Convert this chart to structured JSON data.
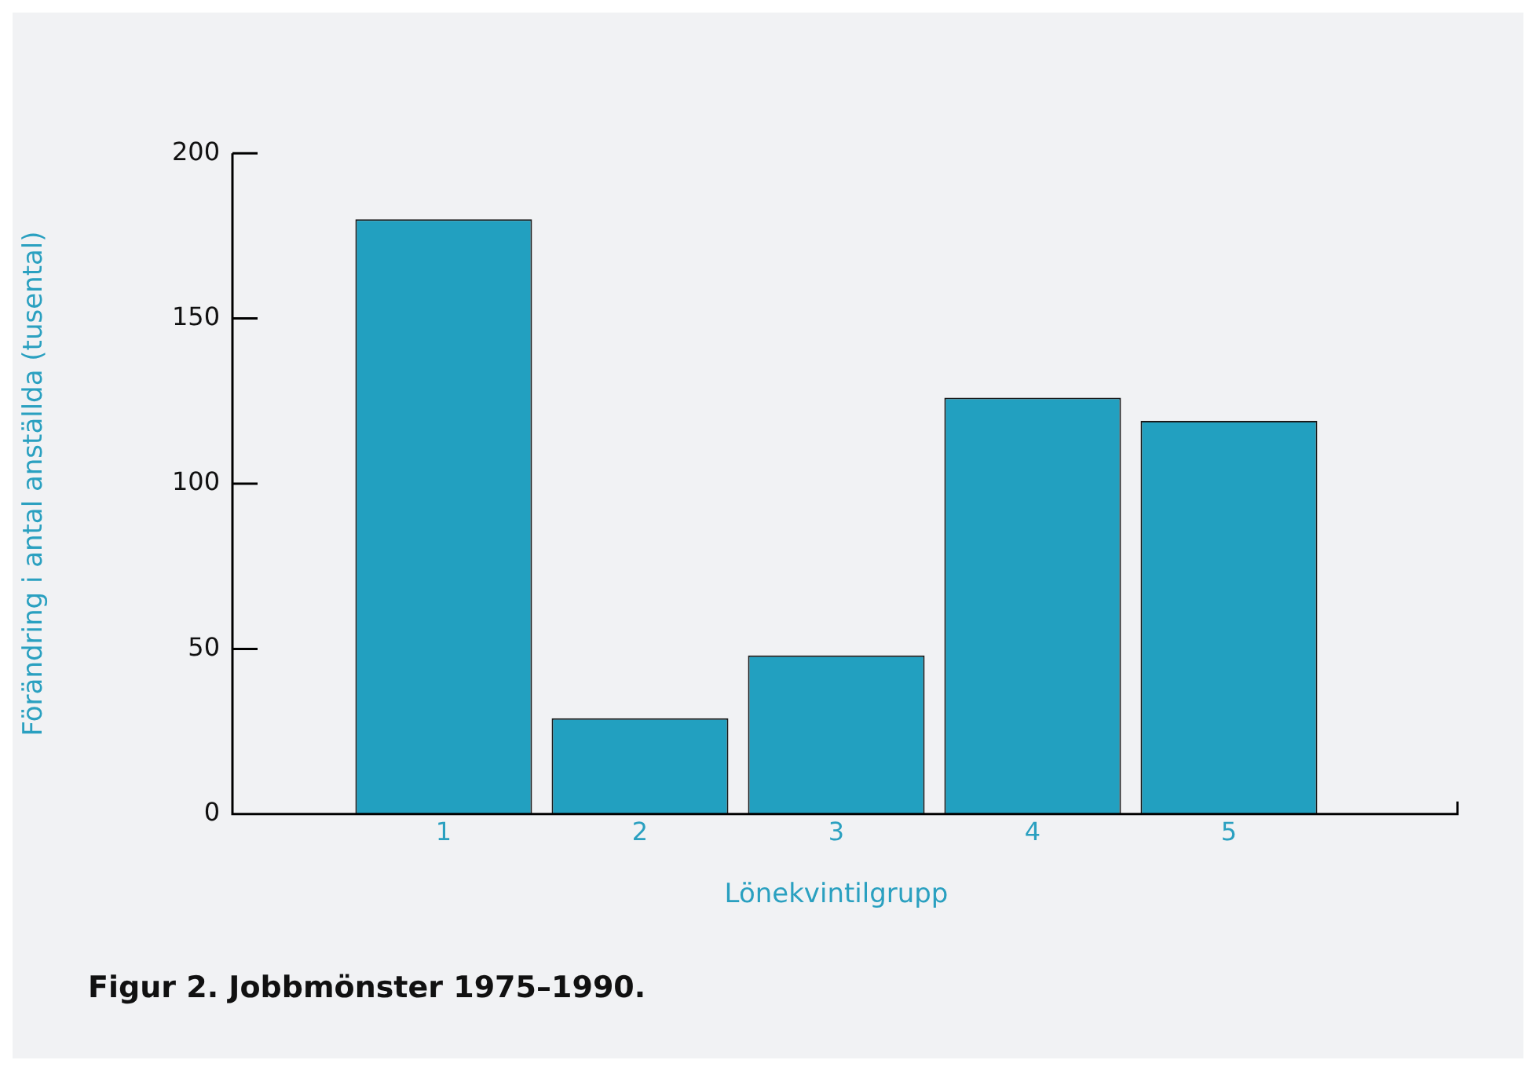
{
  "chart_data": {
    "type": "bar",
    "xlabel": "Lönekvintilgrupp",
    "ylabel": "Förändring i antal anställda (tusental)",
    "categories": [
      "1",
      "2",
      "3",
      "4",
      "5"
    ],
    "values": [
      180,
      29,
      48,
      126,
      119
    ],
    "color": "#22a0c0",
    "ylim": [
      0,
      200
    ],
    "yticks": [
      0,
      50,
      100,
      150,
      200
    ],
    "grid": false,
    "legend": false,
    "annotations": [
      "Figur 2. Jobbmönster 1975–1990."
    ]
  }
}
